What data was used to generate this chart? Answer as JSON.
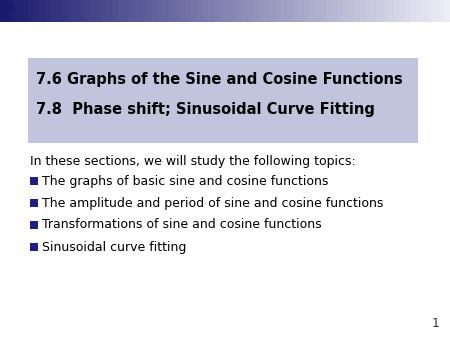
{
  "title_line1": "7.6 Graphs of the Sine and Cosine Functions",
  "title_line2": "7.8  Phase shift; Sinusoidal Curve Fitting",
  "title_box_color": "#c0c4dc",
  "title_text_color": "#000000",
  "intro_text": "In these sections, we will study the following topics:",
  "bullet_items": [
    "The graphs of basic sine and cosine functions",
    "The amplitude and period of sine and cosine functions",
    "Transformations of sine and cosine functions",
    "Sinusoidal curve fitting"
  ],
  "bullet_color": "#1f1f8c",
  "text_color": "#000000",
  "background_color": "#ffffff",
  "page_number": "1",
  "header_dark_color": "#1a1a6e",
  "header_light_color": "#e8e8f4"
}
